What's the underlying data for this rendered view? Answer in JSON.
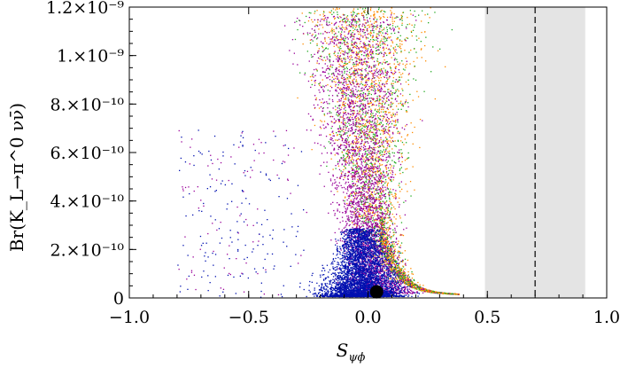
{
  "chart_data": {
    "type": "scatter",
    "title": "",
    "xlabel": "S",
    "xlabel_sub": "ψϕ",
    "ylabel": "Br(K_L→π^0 νν̄)",
    "xlim": [
      -1.0,
      1.0
    ],
    "ylim": [
      0,
      1.2e-09
    ],
    "x_ticks": [
      {
        "value": -1.0,
        "label": "−1.0"
      },
      {
        "value": -0.5,
        "label": "−0.5"
      },
      {
        "value": 0.0,
        "label": "0.0"
      },
      {
        "value": 0.5,
        "label": "0.5"
      },
      {
        "value": 1.0,
        "label": "1.0"
      }
    ],
    "y_ticks": [
      {
        "value": 0,
        "label": "0"
      },
      {
        "value": 2e-10,
        "label": "2.×10⁻¹⁰"
      },
      {
        "value": 4e-10,
        "label": "4.×10⁻¹⁰"
      },
      {
        "value": 6e-10,
        "label": "6.×10⁻¹⁰"
      },
      {
        "value": 8e-10,
        "label": "8.×10⁻¹⁰"
      },
      {
        "value": 1e-09,
        "label": "1.×10⁻⁹"
      },
      {
        "value": 1.2e-09,
        "label": "1.2×10⁻⁹"
      }
    ],
    "grid": false,
    "legend": "none",
    "excluded_band": {
      "x_min": 0.49,
      "x_max": 0.91,
      "color": "#e4e4e4"
    },
    "reference_line": {
      "x": 0.7,
      "style": "dashed",
      "color": "#000000"
    },
    "sm_point": {
      "x": 0.036,
      "y": 2.5e-11,
      "color": "#000000"
    },
    "series": [
      {
        "color": "#ff8c00"
      },
      {
        "color": "#22aa22"
      },
      {
        "color": "#990099"
      },
      {
        "color": "#0010b0"
      }
    ]
  }
}
